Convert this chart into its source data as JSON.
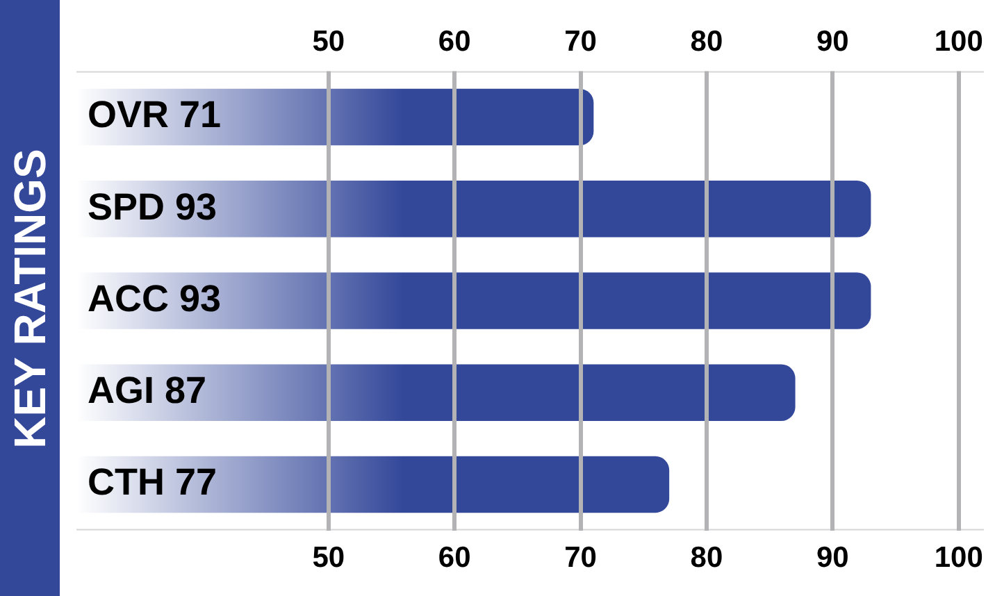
{
  "chart_data": {
    "type": "bar",
    "orientation": "horizontal",
    "title": "KEY RATINGS",
    "categories": [
      "OVR 71",
      "SPD 93",
      "ACC 93",
      "AGI 87",
      "CTH 77"
    ],
    "values": [
      71,
      93,
      93,
      87,
      77
    ],
    "color": "#34489a",
    "xlim": [
      30,
      102
    ],
    "xticks": [
      50,
      60,
      70,
      80,
      90,
      100
    ],
    "x2lim": [
      30,
      102
    ],
    "x2ticks": [
      50,
      60,
      70,
      80,
      90,
      100
    ],
    "grid": "x"
  }
}
